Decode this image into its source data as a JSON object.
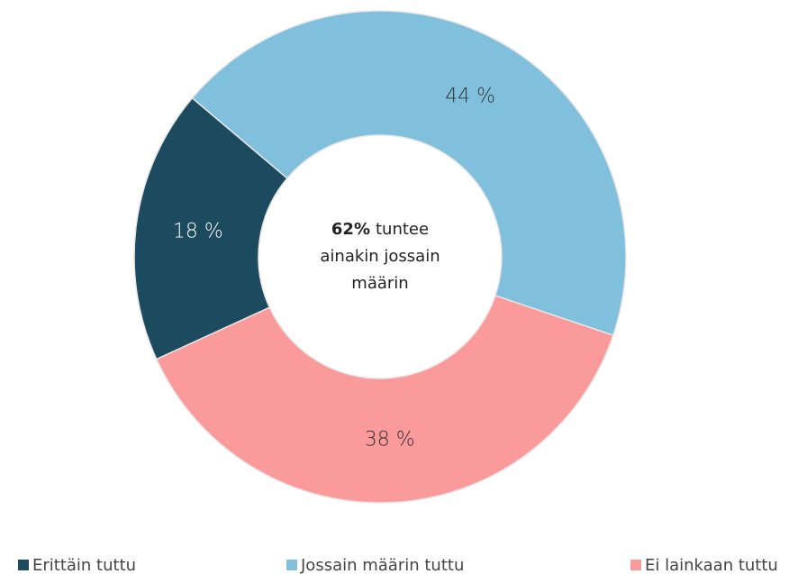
{
  "chart_data": {
    "type": "donut",
    "categories": [
      "Erittäin tuttu",
      "Jossain määrin tuttu",
      "Ei lainkaan tuttu"
    ],
    "values": [
      18,
      44,
      38
    ],
    "value_labels": [
      "18 %",
      "44 %",
      "38 %"
    ],
    "colors": [
      "#1c4a5e",
      "#80c0dc",
      "#fa9a9b"
    ],
    "annotation": {
      "emphasis": "62%",
      "lines": [
        "tuntee",
        "ainakin jossain",
        "määrin"
      ]
    },
    "legend": "bottom"
  }
}
